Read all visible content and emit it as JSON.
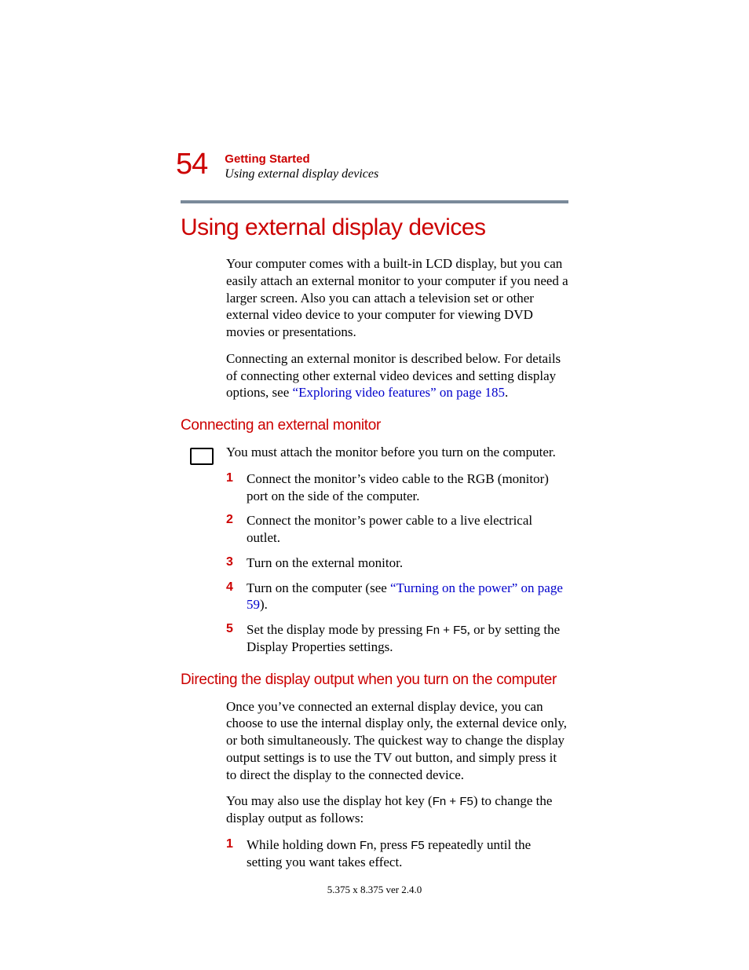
{
  "colors": {
    "accent": "#cc0000",
    "link": "#0000cc",
    "rule": "#7a8a9a",
    "text": "#000000",
    "background": "#ffffff"
  },
  "header": {
    "page_number": "54",
    "chapter": "Getting Started",
    "subsection": "Using external display devices"
  },
  "title": "Using external display devices",
  "intro": {
    "p1": "Your computer comes with a built-in LCD display, but you can easily attach an external monitor to your computer if you need a larger screen. Also you can attach a television set or other external video device to your computer for viewing DVD movies or presentations.",
    "p2_a": "Connecting an external monitor is described below. For details of connecting other external video devices and setting display options, see ",
    "p2_link": "“Exploring video features” on page 185",
    "p2_b": "."
  },
  "section1": {
    "title": "Connecting an external monitor",
    "lead": "You must attach the monitor before you turn on the computer.",
    "steps": {
      "s1": {
        "n": "1",
        "text": "Connect the monitor’s video cable to the RGB (monitor) port on the side of the computer."
      },
      "s2": {
        "n": "2",
        "text": "Connect the monitor’s power cable to a live electrical outlet."
      },
      "s3": {
        "n": "3",
        "text": "Turn on the external monitor."
      },
      "s4": {
        "n": "4",
        "text_a": "Turn on the computer (see ",
        "link": "“Turning on the power” on page 59",
        "text_b": ")."
      },
      "s5": {
        "n": "5",
        "text_a": "Set the display mode by pressing ",
        "key1": "Fn",
        "plus": " + ",
        "key2": "F5",
        "text_b": ", or by setting the Display Properties settings."
      }
    }
  },
  "section2": {
    "title": "Directing the display output when you turn on the computer",
    "p1": "Once you’ve connected an external display device, you can choose to use the internal display only, the external device only, or both simultaneously. The quickest way to change the display output settings is to use the TV out button, and simply press it to direct the display to the connected device.",
    "p2_a": "You may also use the display hot key (",
    "p2_key1": "Fn",
    "p2_plus": " + ",
    "p2_key2": "F5",
    "p2_b": ") to change the display output as follows:",
    "steps": {
      "s1": {
        "n": "1",
        "text_a": "While holding down ",
        "key1": "Fn",
        "text_b": ", press ",
        "key2": "F5",
        "text_c": " repeatedly until the setting you want takes effect."
      }
    }
  },
  "footer": "5.375 x 8.375 ver 2.4.0"
}
